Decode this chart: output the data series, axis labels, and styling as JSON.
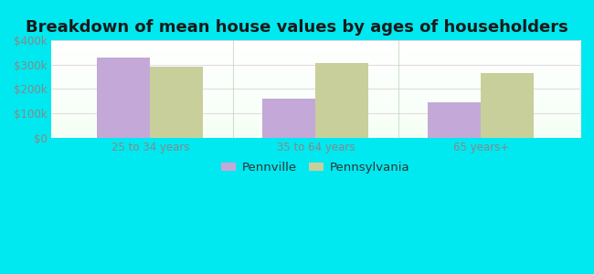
{
  "title": "Breakdown of mean house values by ages of householders",
  "categories": [
    "25 to 34 years",
    "35 to 64 years",
    "65 years+"
  ],
  "series": [
    {
      "name": "Pennville",
      "values": [
        330000,
        160000,
        145000
      ],
      "color": "#c4a8d8"
    },
    {
      "name": "Pennsylvania",
      "values": [
        292000,
        308000,
        265000
      ],
      "color": "#c8cf9a"
    }
  ],
  "ylim": [
    0,
    400000
  ],
  "ytick_values": [
    0,
    100000,
    200000,
    300000,
    400000
  ],
  "ytick_labels": [
    "$0",
    "$100k",
    "$200k",
    "$300k",
    "$400k"
  ],
  "background_outer": "#00e8f0",
  "grid_color": "#e0e0e0",
  "bar_width": 0.32,
  "title_fontsize": 13,
  "tick_fontsize": 8.5,
  "legend_fontsize": 9.5,
  "tick_color": "#888888",
  "title_color": "#1a1a1a",
  "separator_color": "#b0d0b0"
}
